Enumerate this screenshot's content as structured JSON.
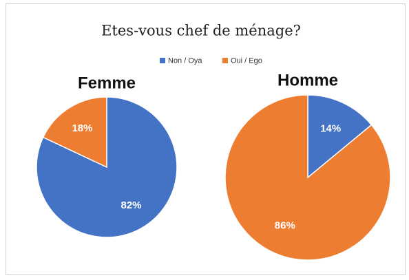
{
  "title": "Etes-vous chef de ménage?",
  "chart_data": [
    {
      "type": "pie",
      "title": "Femme",
      "categories": [
        "Non / Oya",
        "Oui / Ego"
      ],
      "colors": [
        "#4472c4",
        "#ed7d31"
      ],
      "values": [
        82,
        18
      ],
      "value_labels": [
        "82%",
        "18%"
      ]
    },
    {
      "type": "pie",
      "title": "Homme",
      "categories": [
        "Non / Oya",
        "Oui / Ego"
      ],
      "colors": [
        "#4472c4",
        "#ed7d31"
      ],
      "values": [
        14,
        86
      ],
      "value_labels": [
        "14%",
        "86%"
      ]
    }
  ]
}
